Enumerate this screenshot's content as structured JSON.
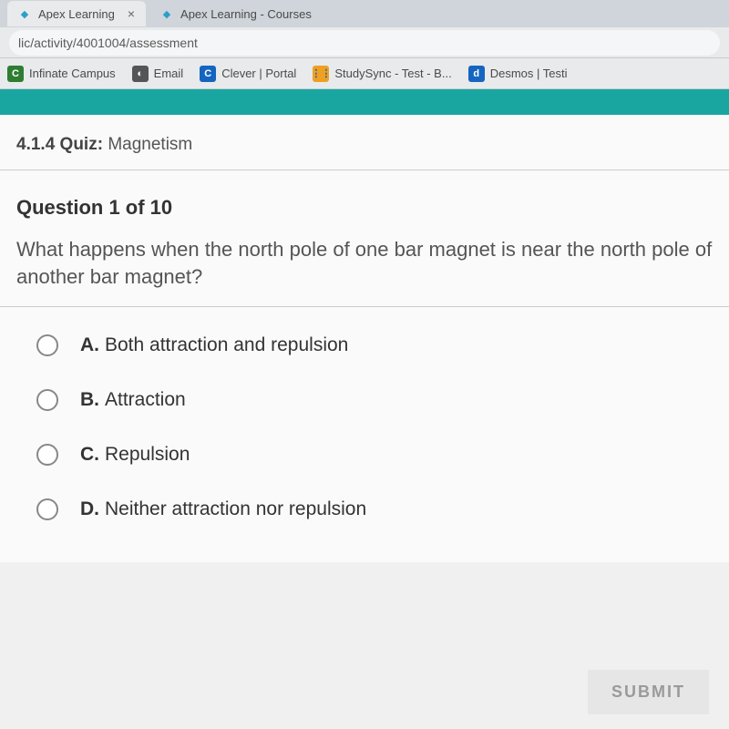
{
  "browser": {
    "tabs": [
      {
        "title": "Apex Learning",
        "active": true
      },
      {
        "title": "Apex Learning - Courses",
        "active": false
      }
    ],
    "url": "lic/activity/4001004/assessment",
    "bookmarks": [
      {
        "label": "Infinate Campus",
        "icon_letter": "C",
        "icon_bg": "#2e7d32"
      },
      {
        "label": "Email",
        "icon_letter": "◐",
        "icon_bg": "#555555"
      },
      {
        "label": "Clever | Portal",
        "icon_letter": "C",
        "icon_bg": "#1565c0"
      },
      {
        "label": "StudySync - Test - B...",
        "icon_letter": "⋮⋮",
        "icon_bg": "#f0a020"
      },
      {
        "label": "Desmos | Testi",
        "icon_letter": "d",
        "icon_bg": "#1565c0"
      }
    ]
  },
  "accent_color": "#1aa6a0",
  "quiz": {
    "section_number": "4.1.4",
    "section_label": "Quiz:",
    "title": "Magnetism",
    "question_counter": "Question 1 of 10",
    "question_text": "What happens when the north pole of one bar magnet is near the north pole of another bar magnet?",
    "options": [
      {
        "letter": "A.",
        "text": "Both attraction and repulsion"
      },
      {
        "letter": "B.",
        "text": "Attraction"
      },
      {
        "letter": "C.",
        "text": "Repulsion"
      },
      {
        "letter": "D.",
        "text": "Neither attraction nor repulsion"
      }
    ],
    "submit_label": "SUBMIT"
  }
}
